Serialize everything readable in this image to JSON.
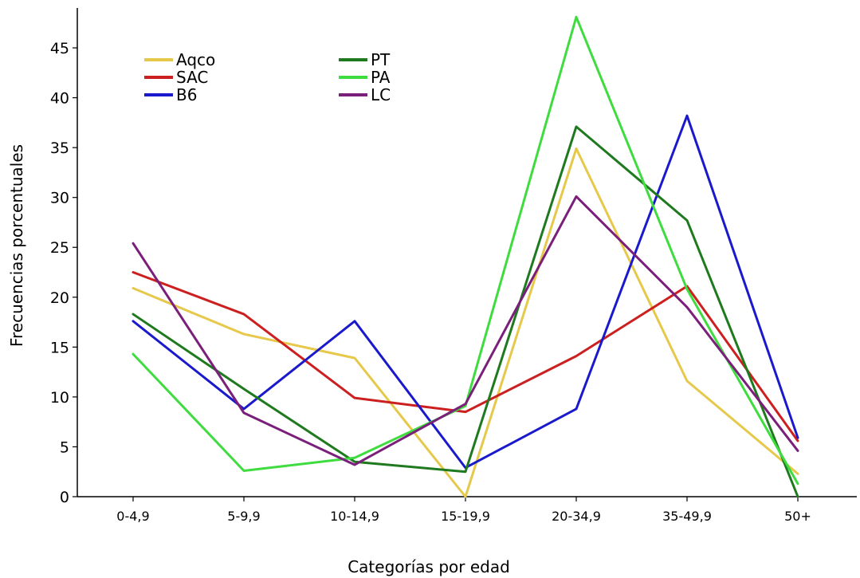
{
  "chart_data": {
    "type": "line",
    "xlabel": "Categorías por edad",
    "ylabel": "Frecuencias porcentuales",
    "categories": [
      "0-4,9",
      "5-9,9",
      "10-14,9",
      "15-19,9",
      "20-34,9",
      "35-49,9",
      "50+"
    ],
    "ylim": [
      0,
      49
    ],
    "yticks": [
      0,
      5,
      10,
      15,
      20,
      25,
      30,
      35,
      40,
      45
    ],
    "grid": false,
    "legend_position": "top-left",
    "series": [
      {
        "name": "Aqco",
        "color": "#e6c84a",
        "values": [
          20.9,
          16.3,
          13.9,
          0,
          34.9,
          11.6,
          2.3
        ]
      },
      {
        "name": "SAC",
        "color": "#cc1f1f",
        "values": [
          22.5,
          18.3,
          9.9,
          8.5,
          14.1,
          21.1,
          5.6
        ]
      },
      {
        "name": "B6",
        "color": "#1a1acc",
        "values": [
          17.6,
          8.8,
          17.6,
          2.9,
          8.8,
          38.2,
          5.9
        ]
      },
      {
        "name": "PT",
        "color": "#1f7a1f",
        "values": [
          18.3,
          10.8,
          3.5,
          2.5,
          37.1,
          27.7,
          0
        ]
      },
      {
        "name": "PA",
        "color": "#3fdc3f",
        "values": [
          14.3,
          2.6,
          3.9,
          9.1,
          48.1,
          20.8,
          1.3
        ]
      },
      {
        "name": "LC",
        "color": "#7a1f7a",
        "values": [
          25.4,
          8.4,
          3.2,
          9.3,
          30.1,
          19.0,
          4.6
        ]
      }
    ]
  }
}
